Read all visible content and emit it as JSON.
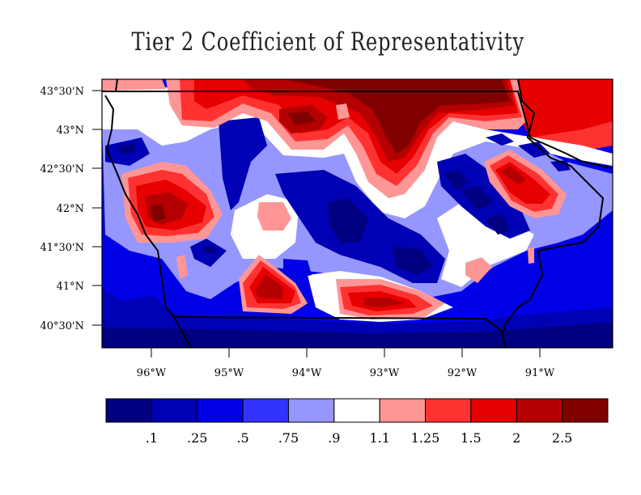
{
  "title": "Tier 2 Coefficient of Representativity",
  "map": {
    "lat_labels": [
      "43°30'N",
      "43°N",
      "42°30'N",
      "42°N",
      "41°30'N",
      "41°N",
      "40°30'N"
    ],
    "lon_labels": [
      "96°W",
      "95°W",
      "94°W",
      "93°W",
      "92°W",
      "91°W"
    ]
  },
  "colorbar": {
    "labels": [
      ".1",
      ".25",
      ".5",
      ".75",
      ".9",
      "1.1",
      "1.25",
      "1.5",
      "2",
      "2.5"
    ],
    "colors": [
      "#000080",
      "#0000b4",
      "#0000e6",
      "#3232ff",
      "#9696ff",
      "#ffffff",
      "#ff9696",
      "#ff3232",
      "#e60000",
      "#b40000",
      "#800000"
    ]
  }
}
